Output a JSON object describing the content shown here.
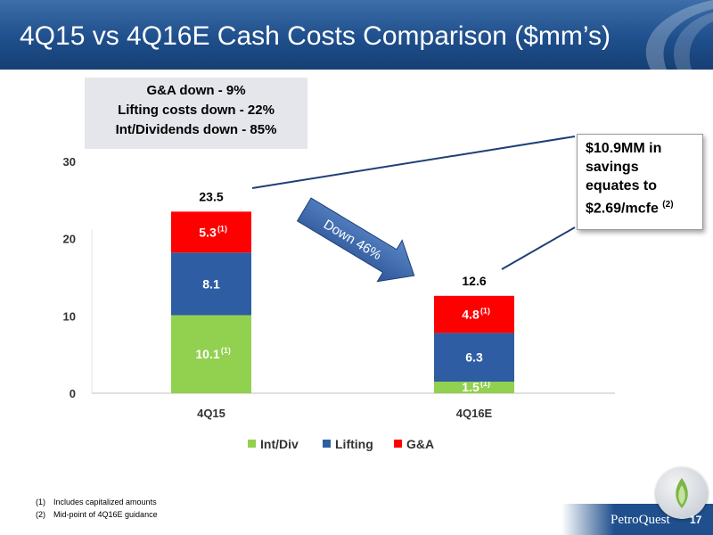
{
  "slide": {
    "title": "4Q15 vs 4Q16E Cash Costs Comparison ($mm’s)",
    "page_number": "17",
    "brand": "PetroQuest"
  },
  "callout": {
    "lines": [
      "G&A down - 9%",
      "Lifting costs down - 22%",
      "Int/Dividends down - 85%"
    ]
  },
  "savings_box": {
    "lines": [
      "$10.9MM in",
      "savings",
      "equates to"
    ],
    "last_line": "$2.69/mcfe",
    "last_footnote": "(2)"
  },
  "arrow_label": "Down 46%",
  "footnotes": [
    {
      "num": "(1)",
      "text": "Includes capitalized amounts"
    },
    {
      "num": "(2)",
      "text": "Mid-point of 4Q16E guidance"
    }
  ],
  "chart_data": {
    "type": "bar",
    "stacked": true,
    "categories": [
      "4Q15",
      "4Q16E"
    ],
    "series": [
      {
        "name": "Int/Div",
        "color": "#92d050",
        "values": [
          10.1,
          1.5
        ],
        "labels": [
          "10.1",
          "1.5"
        ],
        "footnotes": [
          "(1)",
          "(1)"
        ]
      },
      {
        "name": "Lifting",
        "color": "#2e5da3",
        "values": [
          8.1,
          6.3
        ],
        "labels": [
          "8.1",
          "6.3"
        ],
        "footnotes": [
          "",
          ""
        ]
      },
      {
        "name": "G&A",
        "color": "#ff0000",
        "values": [
          5.3,
          4.8
        ],
        "labels": [
          "5.3",
          "4.8"
        ],
        "footnotes": [
          "(1)",
          "(1)"
        ]
      }
    ],
    "totals": [
      "23.5",
      "12.6"
    ],
    "y_ticks": [
      "0",
      "10",
      "20",
      "30"
    ],
    "ylim": [
      0,
      30
    ],
    "legend_position": "bottom",
    "grid": false
  }
}
